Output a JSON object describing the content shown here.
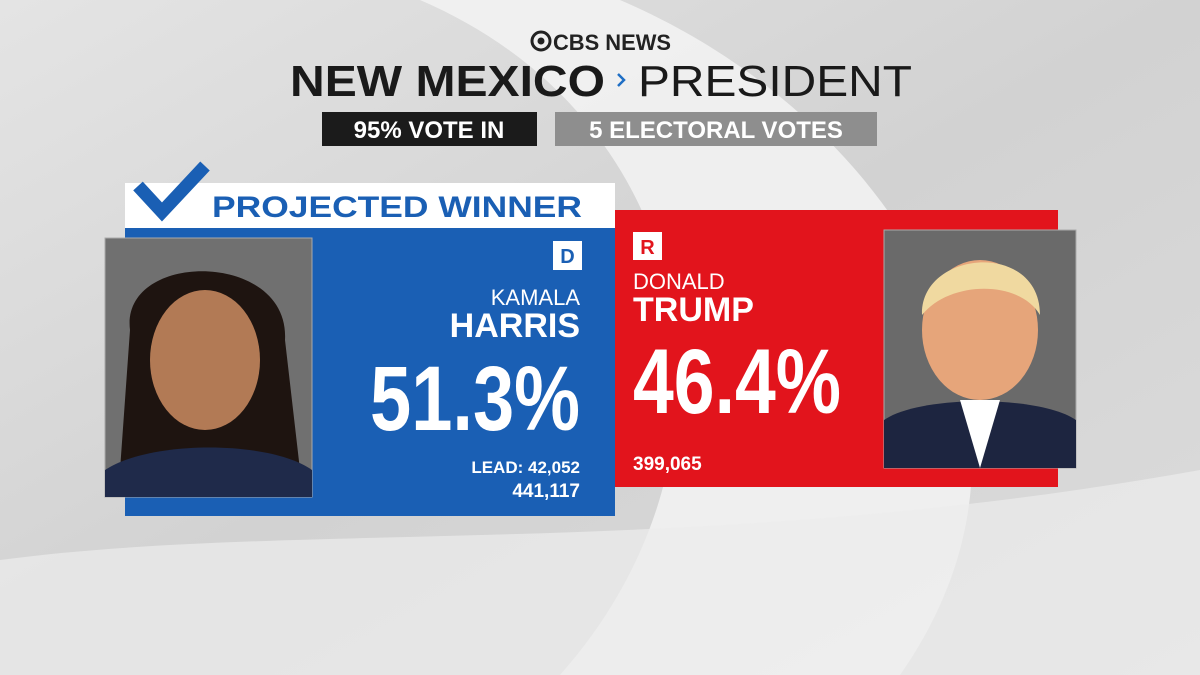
{
  "header": {
    "network": "CBS NEWS",
    "state": "NEW MEXICO",
    "race": "PRESIDENT",
    "reporting": "95% VOTE IN",
    "electoral_votes": "5 ELECTORAL VOTES"
  },
  "candidates": [
    {
      "status": "PROJECTED WINNER",
      "party": "D",
      "first_name": "KAMALA",
      "last_name": "HARRIS",
      "percent": "51.3%",
      "lead": "LEAD: 42,052",
      "votes": "441,117"
    },
    {
      "party": "R",
      "first_name": "DONALD",
      "last_name": "TRUMP",
      "percent": "46.4%",
      "votes": "399,065"
    }
  ]
}
